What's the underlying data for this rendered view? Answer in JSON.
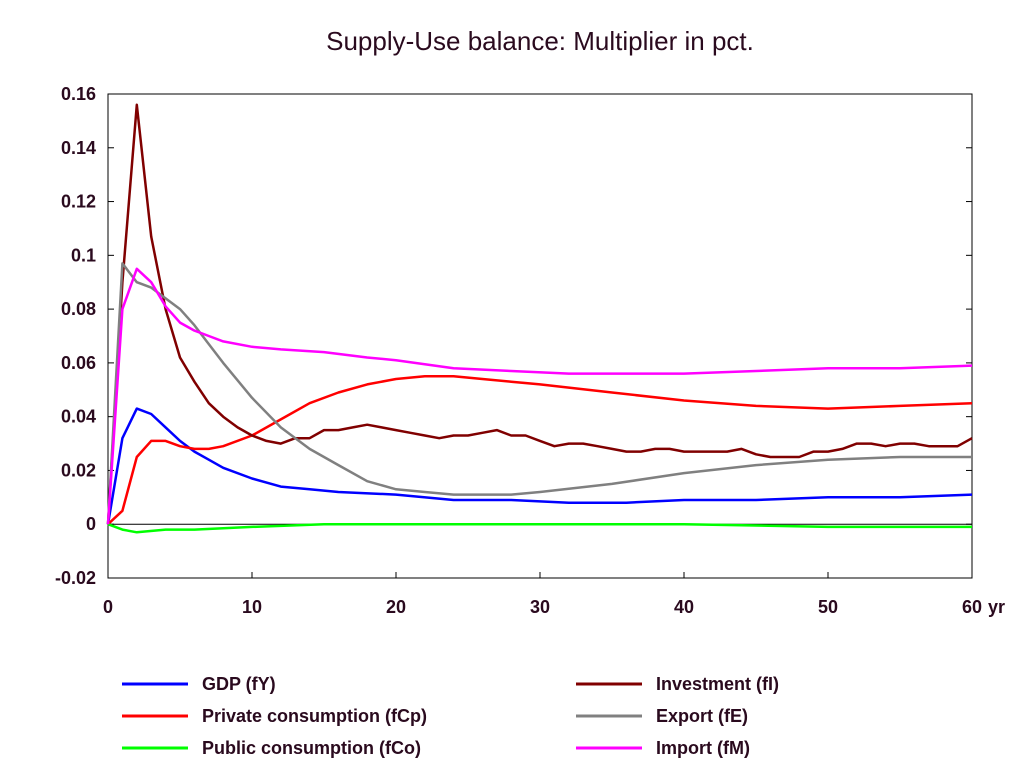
{
  "chart_data": {
    "type": "line",
    "title": "Supply-Use balance: Multiplier in pct.",
    "xlabel": "",
    "ylabel": "",
    "x_unit_label": "yr",
    "xlim": [
      0,
      60
    ],
    "ylim": [
      -0.02,
      0.16
    ],
    "x_ticks": [
      "0",
      "10",
      "20",
      "30",
      "40",
      "50",
      "60"
    ],
    "y_ticks": [
      "0.16",
      "0.14",
      "0.12",
      "0.1",
      "0.08",
      "0.06",
      "0.04",
      "0.02",
      "0",
      "-0.02"
    ],
    "grid": false,
    "legend_position": "bottom",
    "series": [
      {
        "name": "GDP (fY)",
        "color": "#0000ff",
        "points": [
          [
            0,
            0
          ],
          [
            1,
            0.032
          ],
          [
            2,
            0.043
          ],
          [
            3,
            0.041
          ],
          [
            4,
            0.036
          ],
          [
            5,
            0.031
          ],
          [
            6,
            0.027
          ],
          [
            7,
            0.024
          ],
          [
            8,
            0.021
          ],
          [
            10,
            0.017
          ],
          [
            12,
            0.014
          ],
          [
            14,
            0.013
          ],
          [
            16,
            0.012
          ],
          [
            20,
            0.011
          ],
          [
            24,
            0.009
          ],
          [
            28,
            0.009
          ],
          [
            32,
            0.008
          ],
          [
            36,
            0.008
          ],
          [
            40,
            0.009
          ],
          [
            45,
            0.009
          ],
          [
            50,
            0.01
          ],
          [
            55,
            0.01
          ],
          [
            60,
            0.011
          ]
        ]
      },
      {
        "name": "Private consumption (fCp)",
        "color": "#ff0000",
        "points": [
          [
            0,
            0
          ],
          [
            1,
            0.005
          ],
          [
            2,
            0.025
          ],
          [
            3,
            0.031
          ],
          [
            4,
            0.031
          ],
          [
            5,
            0.029
          ],
          [
            6,
            0.028
          ],
          [
            7,
            0.028
          ],
          [
            8,
            0.029
          ],
          [
            10,
            0.033
          ],
          [
            12,
            0.039
          ],
          [
            14,
            0.045
          ],
          [
            16,
            0.049
          ],
          [
            18,
            0.052
          ],
          [
            20,
            0.054
          ],
          [
            22,
            0.055
          ],
          [
            24,
            0.055
          ],
          [
            26,
            0.054
          ],
          [
            28,
            0.053
          ],
          [
            30,
            0.052
          ],
          [
            35,
            0.049
          ],
          [
            40,
            0.046
          ],
          [
            45,
            0.044
          ],
          [
            50,
            0.043
          ],
          [
            55,
            0.044
          ],
          [
            60,
            0.045
          ]
        ]
      },
      {
        "name": "Public consumption (fCo)",
        "color": "#00ff00",
        "points": [
          [
            0,
            0
          ],
          [
            1,
            -0.002
          ],
          [
            2,
            -0.003
          ],
          [
            4,
            -0.002
          ],
          [
            6,
            -0.002
          ],
          [
            10,
            -0.001
          ],
          [
            15,
            0
          ],
          [
            20,
            0
          ],
          [
            30,
            0
          ],
          [
            40,
            0
          ],
          [
            50,
            -0.001
          ],
          [
            60,
            -0.001
          ]
        ]
      },
      {
        "name": "Investment (fI)",
        "color": "#800000",
        "points": [
          [
            0,
            0
          ],
          [
            1,
            0.09
          ],
          [
            2,
            0.156
          ],
          [
            3,
            0.107
          ],
          [
            4,
            0.08
          ],
          [
            5,
            0.062
          ],
          [
            6,
            0.053
          ],
          [
            7,
            0.045
          ],
          [
            8,
            0.04
          ],
          [
            9,
            0.036
          ],
          [
            10,
            0.033
          ],
          [
            11,
            0.031
          ],
          [
            12,
            0.03
          ],
          [
            13,
            0.032
          ],
          [
            14,
            0.032
          ],
          [
            15,
            0.035
          ],
          [
            16,
            0.035
          ],
          [
            17,
            0.036
          ],
          [
            18,
            0.037
          ],
          [
            19,
            0.036
          ],
          [
            20,
            0.035
          ],
          [
            21,
            0.034
          ],
          [
            22,
            0.033
          ],
          [
            23,
            0.032
          ],
          [
            24,
            0.033
          ],
          [
            25,
            0.033
          ],
          [
            26,
            0.034
          ],
          [
            27,
            0.035
          ],
          [
            28,
            0.033
          ],
          [
            29,
            0.033
          ],
          [
            30,
            0.031
          ],
          [
            31,
            0.029
          ],
          [
            32,
            0.03
          ],
          [
            33,
            0.03
          ],
          [
            34,
            0.029
          ],
          [
            35,
            0.028
          ],
          [
            36,
            0.027
          ],
          [
            37,
            0.027
          ],
          [
            38,
            0.028
          ],
          [
            39,
            0.028
          ],
          [
            40,
            0.027
          ],
          [
            41,
            0.027
          ],
          [
            42,
            0.027
          ],
          [
            43,
            0.027
          ],
          [
            44,
            0.028
          ],
          [
            45,
            0.026
          ],
          [
            46,
            0.025
          ],
          [
            47,
            0.025
          ],
          [
            48,
            0.025
          ],
          [
            49,
            0.027
          ],
          [
            50,
            0.027
          ],
          [
            51,
            0.028
          ],
          [
            52,
            0.03
          ],
          [
            53,
            0.03
          ],
          [
            54,
            0.029
          ],
          [
            55,
            0.03
          ],
          [
            56,
            0.03
          ],
          [
            57,
            0.029
          ],
          [
            58,
            0.029
          ],
          [
            59,
            0.029
          ],
          [
            60,
            0.032
          ]
        ]
      },
      {
        "name": "Export (fE)",
        "color": "#808080",
        "points": [
          [
            0,
            0
          ],
          [
            1,
            0.097
          ],
          [
            2,
            0.09
          ],
          [
            3,
            0.088
          ],
          [
            4,
            0.084
          ],
          [
            5,
            0.08
          ],
          [
            6,
            0.074
          ],
          [
            7,
            0.067
          ],
          [
            8,
            0.06
          ],
          [
            10,
            0.047
          ],
          [
            12,
            0.036
          ],
          [
            14,
            0.028
          ],
          [
            16,
            0.022
          ],
          [
            18,
            0.016
          ],
          [
            20,
            0.013
          ],
          [
            22,
            0.012
          ],
          [
            24,
            0.011
          ],
          [
            26,
            0.011
          ],
          [
            28,
            0.011
          ],
          [
            30,
            0.012
          ],
          [
            35,
            0.015
          ],
          [
            40,
            0.019
          ],
          [
            45,
            0.022
          ],
          [
            50,
            0.024
          ],
          [
            55,
            0.025
          ],
          [
            60,
            0.025
          ]
        ]
      },
      {
        "name": "Import (fM)",
        "color": "#ff00ff",
        "points": [
          [
            0,
            0
          ],
          [
            1,
            0.08
          ],
          [
            2,
            0.095
          ],
          [
            3,
            0.09
          ],
          [
            4,
            0.081
          ],
          [
            5,
            0.075
          ],
          [
            6,
            0.072
          ],
          [
            7,
            0.07
          ],
          [
            8,
            0.068
          ],
          [
            10,
            0.066
          ],
          [
            12,
            0.065
          ],
          [
            15,
            0.064
          ],
          [
            18,
            0.062
          ],
          [
            20,
            0.061
          ],
          [
            24,
            0.058
          ],
          [
            28,
            0.057
          ],
          [
            32,
            0.056
          ],
          [
            36,
            0.056
          ],
          [
            40,
            0.056
          ],
          [
            45,
            0.057
          ],
          [
            50,
            0.058
          ],
          [
            55,
            0.058
          ],
          [
            60,
            0.059
          ]
        ]
      }
    ]
  }
}
